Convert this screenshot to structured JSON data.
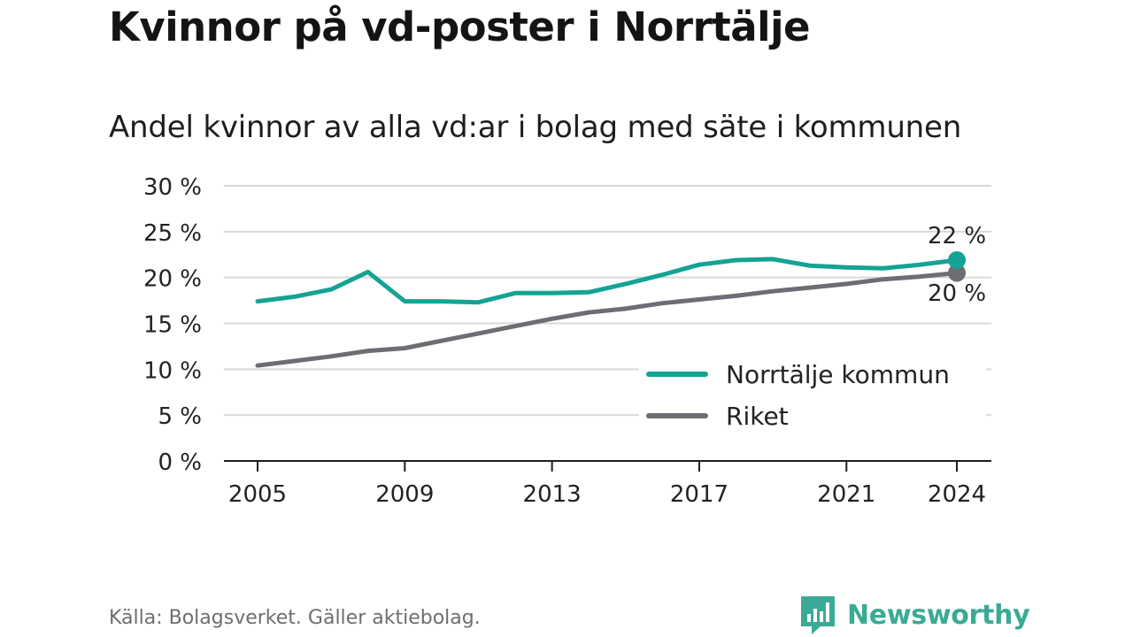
{
  "title": "Kvinnor på vd-poster i Norrtälje",
  "subtitle": "Andel kvinnor av alla vd:ar i bolag med säte i kommunen",
  "source": "Källa: Bolagsverket. Gäller aktiebolag.",
  "brand": {
    "name": "Newsworthy",
    "icon": "newsworthy-logo-icon",
    "color": "#3aaa96"
  },
  "chart_data": {
    "type": "line",
    "title": "",
    "xlabel": "",
    "ylabel": "",
    "ylim": [
      0,
      30
    ],
    "xlim": [
      2005,
      2024
    ],
    "yticks": [
      0,
      5,
      10,
      15,
      20,
      25,
      30
    ],
    "ytick_labels": [
      "0 %",
      "5 %",
      "10 %",
      "15 %",
      "20 %",
      "25 %",
      "30 %"
    ],
    "xticks": [
      2005,
      2009,
      2013,
      2017,
      2021,
      2024
    ],
    "xtick_labels": [
      "2005",
      "2009",
      "2013",
      "2017",
      "2021",
      "2024"
    ],
    "grid": "horizontal",
    "legend_position": "bottom-right",
    "x": [
      2005,
      2006,
      2007,
      2008,
      2009,
      2010,
      2011,
      2012,
      2013,
      2014,
      2015,
      2016,
      2017,
      2018,
      2019,
      2020,
      2021,
      2022,
      2023,
      2024
    ],
    "series": [
      {
        "name": "Norrtälje kommun",
        "color": "#14a394",
        "values": [
          17.4,
          17.9,
          18.7,
          20.6,
          17.4,
          17.4,
          17.3,
          18.3,
          18.3,
          18.4,
          19.3,
          20.3,
          21.4,
          21.9,
          22.0,
          21.3,
          21.1,
          21.0,
          21.4,
          21.9
        ],
        "end_label": "22 %"
      },
      {
        "name": "Riket",
        "color": "#6f6c73",
        "values": [
          10.4,
          10.9,
          11.4,
          12.0,
          12.3,
          13.1,
          13.9,
          14.7,
          15.5,
          16.2,
          16.6,
          17.2,
          17.6,
          18.0,
          18.5,
          18.9,
          19.3,
          19.8,
          20.1,
          20.5
        ],
        "end_label": "20 %"
      }
    ]
  }
}
